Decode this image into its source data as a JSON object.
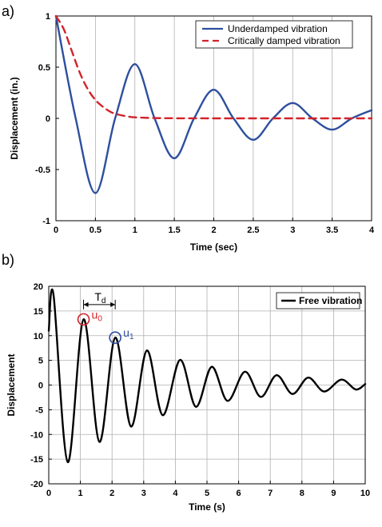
{
  "chart_data": [
    {
      "panel": "a)",
      "type": "line",
      "xlabel": "Time (sec)",
      "ylabel": "Displacement (in.)",
      "xlim": [
        0,
        4
      ],
      "ylim": [
        -1,
        1
      ],
      "xticks": [
        "0",
        "0.5",
        "1",
        "1.5",
        "2",
        "2.5",
        "3",
        "3.5",
        "4"
      ],
      "yticks": [
        "1",
        "0.5",
        "0",
        "-0.5",
        "-1"
      ],
      "grid": "vertical",
      "legend": "top-right",
      "series": [
        {
          "name": "Underdamped vibration",
          "color": "#2e4f9e",
          "style": "solid",
          "x": [
            0,
            0.25,
            0.5,
            0.75,
            1.0,
            1.25,
            1.5,
            1.75,
            2.0,
            2.25,
            2.5,
            2.75,
            3.0,
            3.25,
            3.5,
            3.75,
            4.0
          ],
          "y": [
            1.0,
            0.0,
            -0.73,
            0.0,
            0.53,
            0.0,
            -0.39,
            0.0,
            0.28,
            0.0,
            -0.21,
            0.0,
            0.15,
            0.0,
            -0.11,
            0.0,
            0.08
          ]
        },
        {
          "name": "Critically damped vibration",
          "color": "#d2232a",
          "style": "dashed",
          "x": [
            0,
            0.1,
            0.2,
            0.3,
            0.4,
            0.5,
            0.6,
            0.7,
            0.8,
            0.9,
            1.0,
            1.25,
            1.5,
            2.0,
            3.0,
            4.0
          ],
          "y": [
            1.0,
            0.87,
            0.66,
            0.45,
            0.29,
            0.18,
            0.11,
            0.06,
            0.035,
            0.02,
            0.01,
            0.003,
            0.001,
            0,
            0,
            0
          ]
        }
      ]
    },
    {
      "panel": "b)",
      "type": "line",
      "xlabel": "Time (s)",
      "ylabel": "Displacement",
      "xlim": [
        0,
        10
      ],
      "ylim": [
        -20,
        20
      ],
      "xticks": [
        "0",
        "1",
        "2",
        "3",
        "4",
        "5",
        "6",
        "7",
        "8",
        "9",
        "10"
      ],
      "yticks": [
        "20",
        "15",
        "10",
        "5",
        "0",
        "-5",
        "-10",
        "-15",
        "-20"
      ],
      "grid": "both",
      "legend": "top-right",
      "series": [
        {
          "name": "Free vibration",
          "color": "#000000",
          "style": "solid",
          "x": [
            0,
            0.15,
            0.6,
            1.1,
            1.6,
            2.1,
            2.6,
            3.1,
            3.6,
            4.15,
            4.65,
            5.15,
            5.65,
            6.2,
            6.7,
            7.2,
            7.7,
            8.2,
            8.7,
            9.25,
            9.7,
            10.0
          ],
          "y": [
            11,
            18.3,
            -15.6,
            13.3,
            -11.5,
            9.6,
            -8.4,
            7.0,
            -6.1,
            5.1,
            -4.4,
            3.7,
            -3.2,
            2.7,
            -2.4,
            2.0,
            -1.8,
            1.5,
            -1.3,
            1.1,
            -0.9,
            0.2
          ]
        }
      ],
      "annotations": [
        {
          "label_main": "T",
          "label_sub": "d",
          "type": "period-bracket",
          "x_start": 1.1,
          "x_end": 2.1,
          "y": 16.3
        },
        {
          "label_main": "u",
          "label_sub": "0",
          "type": "circle-marker",
          "x": 1.1,
          "y": 13.3,
          "color": "#d2232a"
        },
        {
          "label_main": "u",
          "label_sub": "1",
          "type": "circle-marker",
          "x": 2.1,
          "y": 9.6,
          "color": "#2e4f9e"
        }
      ]
    }
  ]
}
